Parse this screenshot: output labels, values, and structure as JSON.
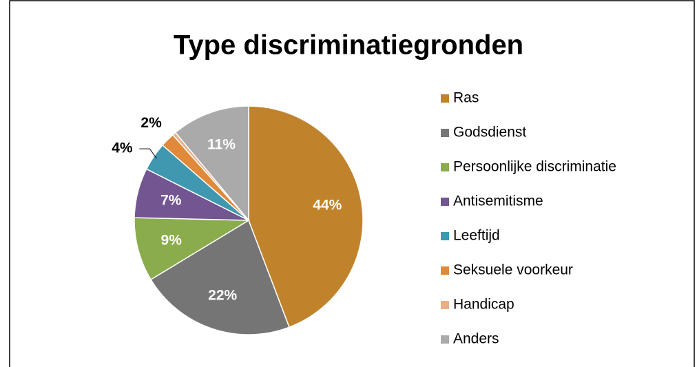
{
  "chart_data": {
    "type": "pie",
    "title": "Type discriminatiegronden",
    "categories": [
      "Ras",
      "Godsdienst",
      "Persoonlijke discriminatie",
      "Antisemitisme",
      "Leeftijd",
      "Seksuele voorkeur",
      "Handicap",
      "Anders"
    ],
    "values": [
      44,
      22,
      9,
      7,
      4,
      2,
      0.5,
      11
    ],
    "value_labels": [
      "44%",
      "22%",
      "9%",
      "7%",
      "4%",
      "2%",
      null,
      "11%"
    ],
    "colors": [
      "#c0832b",
      "#757575",
      "#8aac4d",
      "#725591",
      "#3f98b0",
      "#e0893a",
      "#e9b088",
      "#aaaaaa"
    ],
    "legend": "right"
  }
}
